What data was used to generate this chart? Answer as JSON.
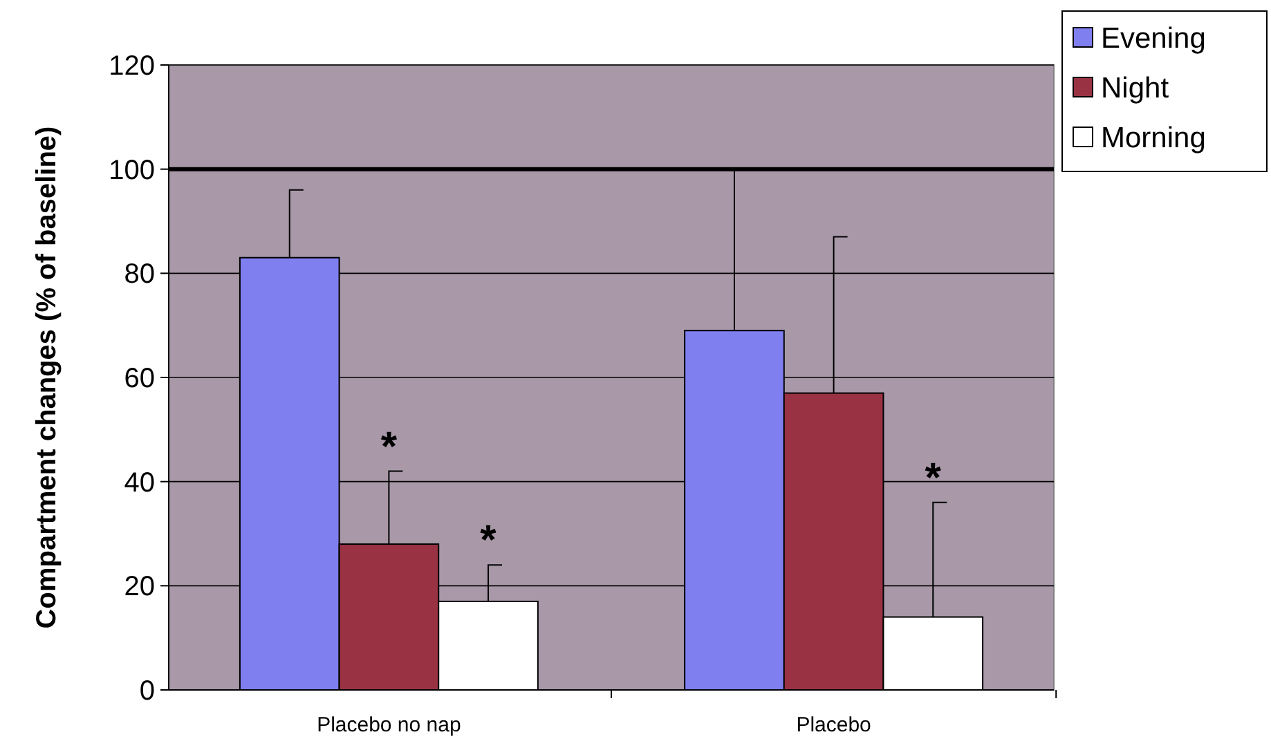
{
  "chart_data": {
    "type": "bar",
    "ylabel": "Compartment changes (% of baseline)",
    "categories": [
      "Placebo no nap",
      "Placebo"
    ],
    "series": [
      {
        "name": "Evening",
        "color": "#7f7fef",
        "values": [
          83,
          69
        ],
        "errors": [
          [
            83,
            96
          ],
          [
            69,
            100
          ]
        ]
      },
      {
        "name": "Night",
        "color": "#993344",
        "values": [
          28,
          57
        ],
        "errors": [
          [
            28,
            42
          ],
          [
            57,
            87
          ]
        ],
        "value_labels": [
          "*",
          null
        ]
      },
      {
        "name": "Morning",
        "color": "#ffffff",
        "values": [
          17,
          14
        ],
        "errors": [
          [
            17,
            24
          ],
          [
            14,
            36
          ]
        ],
        "value_labels": [
          "*",
          "*"
        ]
      }
    ],
    "ylim": [
      0,
      120
    ],
    "yticks": [
      0,
      20,
      40,
      60,
      80,
      100,
      120
    ],
    "grid": "y",
    "legend": "top right",
    "ref_lines": [
      {
        "axis": "y",
        "value": 100,
        "color": "#000000"
      }
    ]
  }
}
